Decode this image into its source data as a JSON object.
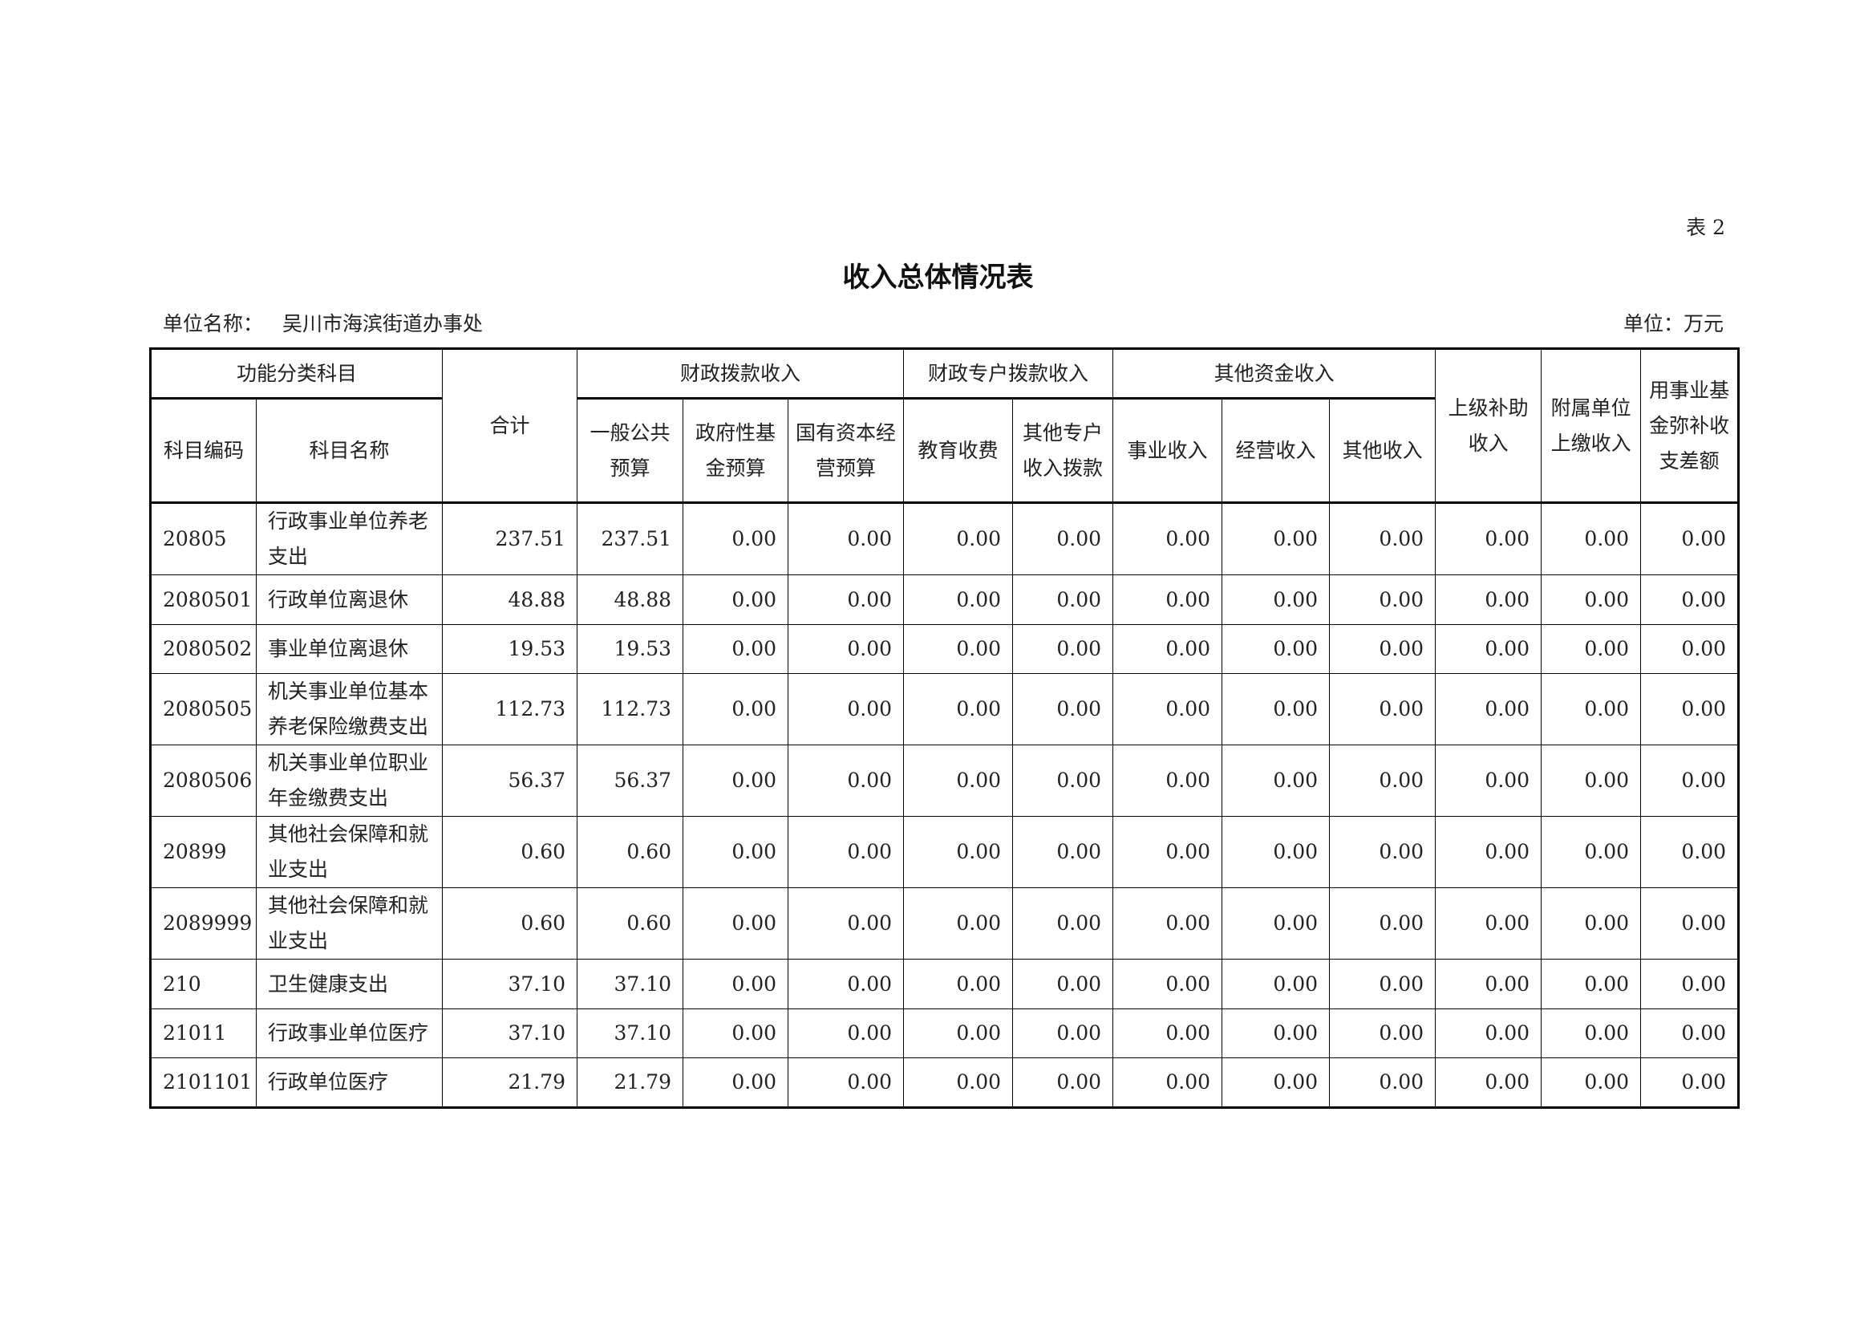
{
  "table_no": "表 2",
  "title": "收入总体情况表",
  "unit_name_label": "单位名称：",
  "unit_name": "吴川市海滨街道办事处",
  "unit": "单位：万元",
  "headers": {
    "group_subject": "功能分类科目",
    "code": "科目编码",
    "name": "科目名称",
    "total": "合计",
    "group_fiscal": "财政拨款收入",
    "general": "一般公共预算",
    "gov_fund": "政府性基金预算",
    "state_capital": "国有资本经营预算",
    "group_special": "财政专户拨款收入",
    "edu_fee": "教育收费",
    "other_special": "其他专户收入拨款",
    "group_other": "其他资金收入",
    "business": "事业收入",
    "operating": "经营收入",
    "other_income": "其他收入",
    "superior_subsidy": "上级补助收入",
    "affiliated": "附属单位上缴收入",
    "fund_balance": "用事业基金弥补收支差额"
  },
  "rows": [
    {
      "code": "20805",
      "name": "行政事业单位养老支出",
      "values": [
        "237.51",
        "237.51",
        "0.00",
        "0.00",
        "0.00",
        "0.00",
        "0.00",
        "0.00",
        "0.00",
        "0.00",
        "0.00",
        "0.00"
      ]
    },
    {
      "code": "2080501",
      "name": "行政单位离退休",
      "values": [
        "48.88",
        "48.88",
        "0.00",
        "0.00",
        "0.00",
        "0.00",
        "0.00",
        "0.00",
        "0.00",
        "0.00",
        "0.00",
        "0.00"
      ]
    },
    {
      "code": "2080502",
      "name": "事业单位离退休",
      "values": [
        "19.53",
        "19.53",
        "0.00",
        "0.00",
        "0.00",
        "0.00",
        "0.00",
        "0.00",
        "0.00",
        "0.00",
        "0.00",
        "0.00"
      ]
    },
    {
      "code": "2080505",
      "name": "机关事业单位基本养老保险缴费支出",
      "values": [
        "112.73",
        "112.73",
        "0.00",
        "0.00",
        "0.00",
        "0.00",
        "0.00",
        "0.00",
        "0.00",
        "0.00",
        "0.00",
        "0.00"
      ]
    },
    {
      "code": "2080506",
      "name": "机关事业单位职业年金缴费支出",
      "values": [
        "56.37",
        "56.37",
        "0.00",
        "0.00",
        "0.00",
        "0.00",
        "0.00",
        "0.00",
        "0.00",
        "0.00",
        "0.00",
        "0.00"
      ]
    },
    {
      "code": "20899",
      "name": "其他社会保障和就业支出",
      "values": [
        "0.60",
        "0.60",
        "0.00",
        "0.00",
        "0.00",
        "0.00",
        "0.00",
        "0.00",
        "0.00",
        "0.00",
        "0.00",
        "0.00"
      ]
    },
    {
      "code": "2089999",
      "name": "其他社会保障和就业支出",
      "values": [
        "0.60",
        "0.60",
        "0.00",
        "0.00",
        "0.00",
        "0.00",
        "0.00",
        "0.00",
        "0.00",
        "0.00",
        "0.00",
        "0.00"
      ]
    },
    {
      "code": "210",
      "name": "卫生健康支出",
      "values": [
        "37.10",
        "37.10",
        "0.00",
        "0.00",
        "0.00",
        "0.00",
        "0.00",
        "0.00",
        "0.00",
        "0.00",
        "0.00",
        "0.00"
      ]
    },
    {
      "code": "21011",
      "name": "行政事业单位医疗",
      "values": [
        "37.10",
        "37.10",
        "0.00",
        "0.00",
        "0.00",
        "0.00",
        "0.00",
        "0.00",
        "0.00",
        "0.00",
        "0.00",
        "0.00"
      ]
    },
    {
      "code": "2101101",
      "name": "行政单位医疗",
      "values": [
        "21.79",
        "21.79",
        "0.00",
        "0.00",
        "0.00",
        "0.00",
        "0.00",
        "0.00",
        "0.00",
        "0.00",
        "0.00",
        "0.00"
      ]
    }
  ]
}
